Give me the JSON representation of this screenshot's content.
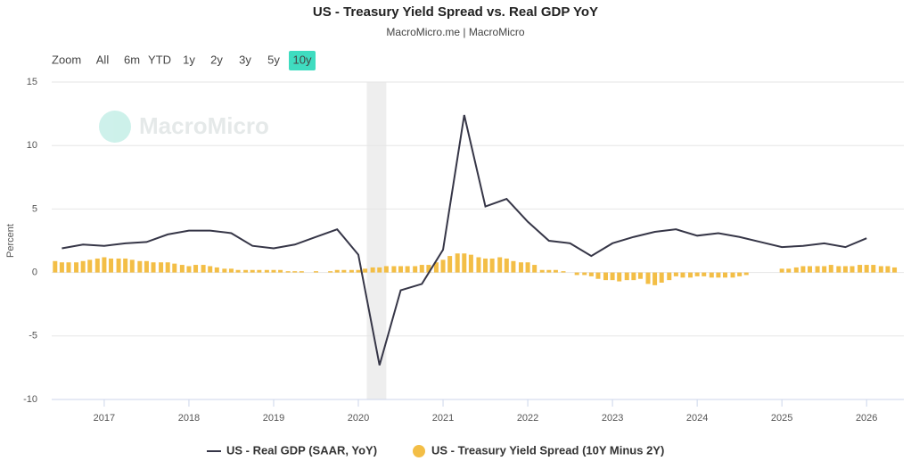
{
  "chart_data": {
    "type": "combo",
    "title": "US - Treasury Yield Spread vs. Real GDP YoY",
    "subtitle": "MacroMicro.me | MacroMicro",
    "watermark": "MacroMicro",
    "y_label": "Percent",
    "range_selector": {
      "label": "Zoom",
      "buttons": [
        "All",
        "6m",
        "YTD",
        "1y",
        "2y",
        "3y",
        "5y",
        "10y"
      ],
      "selected": 7
    },
    "xlim": [
      2016.38,
      2026.44
    ],
    "xticks": [
      2017,
      2018,
      2019,
      2020,
      2021,
      2022,
      2023,
      2024,
      2025,
      2026
    ],
    "ylim": [
      -10,
      15
    ],
    "yticks": [
      -10,
      -5,
      0,
      5,
      10,
      15
    ],
    "grid": true,
    "shaded_x_range": [
      2020.1,
      2020.33
    ],
    "legend": "bottom",
    "series": [
      {
        "name": "US - Real GDP (SAAR, YoY)",
        "type": "line",
        "color": "#363647",
        "x": [
          2016.5,
          2016.75,
          2017,
          2017.25,
          2017.5,
          2017.75,
          2018,
          2018.25,
          2018.5,
          2018.75,
          2019,
          2019.25,
          2019.5,
          2019.75,
          2020,
          2020.25,
          2020.5,
          2020.75,
          2021,
          2021.25,
          2021.5,
          2021.75,
          2022,
          2022.25,
          2022.5,
          2022.75,
          2023,
          2023.25,
          2023.5,
          2023.75,
          2024,
          2024.25,
          2024.5,
          2024.75,
          2025,
          2025.25,
          2025.5,
          2025.75,
          2026
        ],
        "values": [
          1.9,
          2.2,
          2.1,
          2.3,
          2.4,
          3.0,
          3.3,
          3.3,
          3.1,
          2.1,
          1.9,
          2.2,
          2.8,
          3.4,
          1.4,
          -7.3,
          -1.4,
          -0.9,
          1.8,
          12.4,
          5.2,
          5.8,
          4.0,
          2.5,
          2.3,
          1.3,
          2.3,
          2.8,
          3.2,
          3.4,
          2.9,
          3.1,
          2.8,
          2.4,
          2.0,
          2.1,
          2.3,
          2.0,
          2.7
        ]
      },
      {
        "name": "US - Treasury Yield Spread (10Y Minus 2Y)",
        "type": "bar",
        "color": "#f3be46",
        "x": [
          2016.42,
          2016.5,
          2016.58,
          2016.67,
          2016.75,
          2016.83,
          2016.92,
          2017,
          2017.08,
          2017.17,
          2017.25,
          2017.33,
          2017.42,
          2017.5,
          2017.58,
          2017.67,
          2017.75,
          2017.83,
          2017.92,
          2018,
          2018.08,
          2018.17,
          2018.25,
          2018.33,
          2018.42,
          2018.5,
          2018.58,
          2018.67,
          2018.75,
          2018.83,
          2018.92,
          2019,
          2019.08,
          2019.17,
          2019.25,
          2019.33,
          2019.42,
          2019.5,
          2019.58,
          2019.67,
          2019.75,
          2019.83,
          2019.92,
          2020,
          2020.08,
          2020.17,
          2020.25,
          2020.33,
          2020.42,
          2020.5,
          2020.58,
          2020.67,
          2020.75,
          2020.83,
          2020.92,
          2021,
          2021.08,
          2021.17,
          2021.25,
          2021.33,
          2021.42,
          2021.5,
          2021.58,
          2021.67,
          2021.75,
          2021.83,
          2021.92,
          2022,
          2022.08,
          2022.17,
          2022.25,
          2022.33,
          2022.42,
          2022.5,
          2022.58,
          2022.67,
          2022.75,
          2022.83,
          2022.92,
          2023,
          2023.08,
          2023.17,
          2023.25,
          2023.33,
          2023.42,
          2023.5,
          2023.58,
          2023.67,
          2023.75,
          2023.83,
          2023.92,
          2024,
          2024.08,
          2024.17,
          2024.25,
          2024.33,
          2024.42,
          2024.5,
          2024.58,
          2024.67,
          2024.75,
          2024.83,
          2024.92,
          2025,
          2025.08,
          2025.17,
          2025.25,
          2025.33,
          2025.42,
          2025.5,
          2025.58,
          2025.67,
          2025.75,
          2025.83,
          2025.92,
          2026,
          2026.08,
          2026.17,
          2026.25,
          2026.33
        ],
        "values": [
          0.9,
          0.8,
          0.8,
          0.8,
          0.9,
          1.0,
          1.1,
          1.2,
          1.1,
          1.1,
          1.1,
          1.0,
          0.9,
          0.9,
          0.8,
          0.8,
          0.8,
          0.7,
          0.6,
          0.5,
          0.6,
          0.6,
          0.5,
          0.4,
          0.3,
          0.3,
          0.2,
          0.2,
          0.2,
          0.2,
          0.2,
          0.2,
          0.2,
          0.1,
          0.1,
          0.1,
          0.0,
          0.1,
          0.0,
          0.1,
          0.2,
          0.2,
          0.2,
          0.2,
          0.3,
          0.4,
          0.4,
          0.5,
          0.5,
          0.5,
          0.5,
          0.5,
          0.6,
          0.6,
          0.8,
          1.0,
          1.3,
          1.5,
          1.5,
          1.4,
          1.2,
          1.1,
          1.1,
          1.2,
          1.1,
          0.9,
          0.8,
          0.8,
          0.6,
          0.2,
          0.2,
          0.2,
          0.1,
          0.0,
          -0.2,
          -0.2,
          -0.3,
          -0.5,
          -0.6,
          -0.6,
          -0.7,
          -0.6,
          -0.6,
          -0.5,
          -0.9,
          -1.0,
          -0.8,
          -0.6,
          -0.3,
          -0.4,
          -0.4,
          -0.3,
          -0.3,
          -0.4,
          -0.4,
          -0.4,
          -0.4,
          -0.3,
          -0.2,
          0.0,
          0.0,
          0.0,
          0.0,
          0.3,
          0.3,
          0.4,
          0.5,
          0.5,
          0.5,
          0.5,
          0.6,
          0.5,
          0.5,
          0.5,
          0.6,
          0.6,
          0.6,
          0.5,
          0.5,
          0.4
        ]
      }
    ]
  }
}
